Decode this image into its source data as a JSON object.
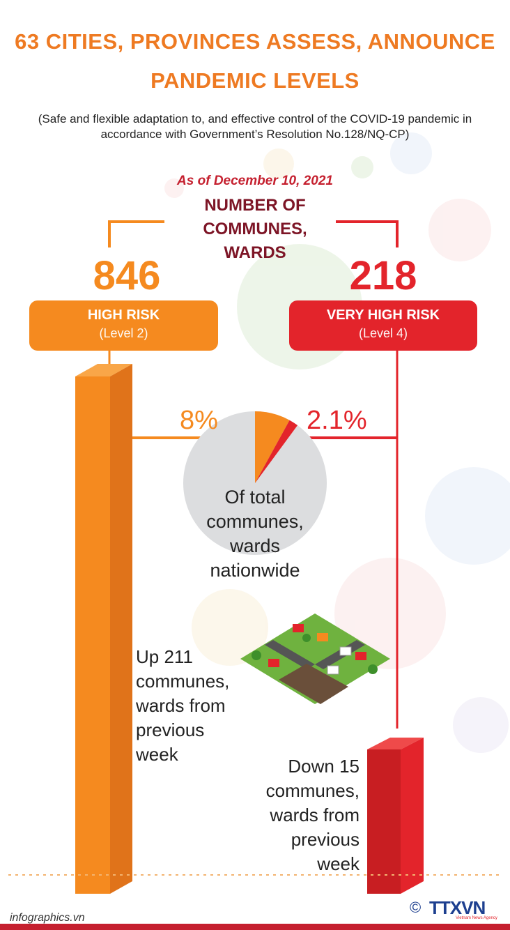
{
  "header": {
    "title_line1": "63 CITIES, PROVINCES ASSESS, ANNOUNCE",
    "title_line2": "PANDEMIC LEVELS",
    "subtitle_line1": "(Safe and flexible adaptation to, and effective control of the COVID-19 pandemic in",
    "subtitle_line2": "accordance with Government’s Resolution No.128/NQ-CP)"
  },
  "date": "As of December 10, 2021",
  "center_heading": [
    "NUMBER OF",
    "COMMUNES,",
    "WARDS"
  ],
  "high_risk": {
    "count": "846",
    "label": "HIGH RISK",
    "level": "(Level 2)",
    "percent": "8%",
    "percent_value": 8,
    "change_lines": [
      "Up 211",
      "communes,",
      "wards from",
      "previous",
      "week"
    ],
    "color": "#f58a1f"
  },
  "very_high_risk": {
    "count": "218",
    "label": "VERY HIGH RISK",
    "level": "(Level 4)",
    "percent": "2.1%",
    "percent_value": 2.1,
    "change_lines": [
      "Down 15",
      "communes,",
      "wards from",
      "previous",
      "week"
    ],
    "color": "#e3242b"
  },
  "pie_label": [
    "Of total",
    "communes,",
    "wards",
    "nationwide"
  ],
  "footer": {
    "source": "infographics.vn",
    "copyright": "©",
    "logo_text": "TTXVN",
    "logo_sub": "Vietnam News Agency"
  },
  "colors": {
    "orange": "#f58a1f",
    "red": "#e3242b",
    "maroon": "#7d1526",
    "title_orange": "#ee7a22"
  }
}
